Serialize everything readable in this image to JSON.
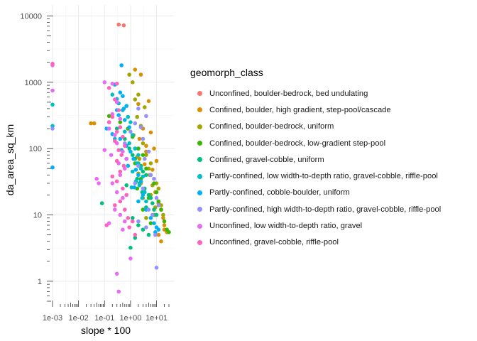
{
  "chart_data": {
    "type": "scatter",
    "xlabel": "slope * 100",
    "ylabel": "da_area_sq_km",
    "x_scale": "log10",
    "y_scale": "log10",
    "xlim": [
      0.001,
      30
    ],
    "ylim": [
      0.5,
      12000
    ],
    "x_ticks": [
      {
        "value": 0.001,
        "label": "1e-03"
      },
      {
        "value": 0.01,
        "label": "1e-02"
      },
      {
        "value": 0.1,
        "label": "1e-01"
      },
      {
        "value": 1,
        "label": "1e+00"
      },
      {
        "value": 10,
        "label": "1e+01"
      }
    ],
    "y_ticks": [
      {
        "value": 1,
        "label": "1"
      },
      {
        "value": 10,
        "label": "10"
      },
      {
        "value": 100,
        "label": "100"
      },
      {
        "value": 1000,
        "label": "1000"
      },
      {
        "value": 10000,
        "label": "10000"
      }
    ],
    "grid": true,
    "rug": true,
    "legend_position": "right",
    "legend_title": "geomorph_class",
    "series": [
      {
        "name": "Unconfined, boulder-bedrock, bed undulating",
        "color": "#F8766D",
        "points": [
          [
            0.35,
            7400
          ],
          [
            0.55,
            7200
          ]
        ]
      },
      {
        "name": "Confined, boulder, high gradient, step-pool/cascade",
        "color": "#D89000",
        "points": [
          [
            1.5,
            1550
          ],
          [
            2.5,
            1300
          ],
          [
            5,
            520
          ],
          [
            2,
            470
          ],
          [
            3,
            200
          ],
          [
            6,
            175
          ],
          [
            2.2,
            140
          ],
          [
            4,
            110
          ],
          [
            8,
            100
          ],
          [
            10,
            65
          ],
          [
            3.5,
            58
          ],
          [
            7,
            48
          ],
          [
            9,
            22
          ],
          [
            12,
            15
          ],
          [
            15,
            12
          ],
          [
            18,
            9
          ],
          [
            20,
            6
          ],
          [
            25,
            5.5
          ],
          [
            15,
            4
          ],
          [
            4,
            90
          ],
          [
            1.8,
            75
          ],
          [
            5.5,
            40
          ],
          [
            20,
            7
          ],
          [
            12,
            5
          ],
          [
            0.03,
            240
          ],
          [
            0.04,
            240
          ],
          [
            2.5,
            30
          ]
        ]
      },
      {
        "name": "Confined, boulder-bedrock, uniform",
        "color": "#A3A500",
        "points": [
          [
            0.9,
            1300
          ],
          [
            1.2,
            1000
          ],
          [
            2,
            650
          ],
          [
            1.5,
            550
          ],
          [
            3.5,
            420
          ],
          [
            1.8,
            300
          ],
          [
            2.5,
            220
          ],
          [
            1.3,
            160
          ],
          [
            3,
            120
          ],
          [
            4,
            80
          ],
          [
            6,
            60
          ],
          [
            5,
            50
          ],
          [
            2,
            42
          ],
          [
            8,
            35
          ],
          [
            10,
            30
          ],
          [
            12,
            25
          ],
          [
            6,
            20
          ],
          [
            3,
            18
          ],
          [
            15,
            14
          ],
          [
            18,
            10
          ],
          [
            4,
            9
          ],
          [
            2.2,
            70
          ],
          [
            7,
            28
          ],
          [
            9,
            13
          ]
        ]
      },
      {
        "name": "Confined, boulder-bedrock, low-gradient step-pool",
        "color": "#39B600",
        "points": [
          [
            0.15,
            310
          ],
          [
            0.4,
            250
          ],
          [
            0.8,
            200
          ],
          [
            1.2,
            150
          ],
          [
            2,
            100
          ],
          [
            3,
            80
          ],
          [
            1.5,
            60
          ],
          [
            4,
            50
          ],
          [
            6,
            40
          ],
          [
            2.5,
            35
          ],
          [
            8,
            30
          ],
          [
            10,
            22
          ],
          [
            5,
            18
          ],
          [
            12,
            16
          ],
          [
            15,
            12
          ],
          [
            20,
            8
          ],
          [
            25,
            6
          ],
          [
            30,
            5.5
          ],
          [
            8,
            10
          ],
          [
            6,
            7.5
          ],
          [
            3,
            12
          ],
          [
            1.8,
            25
          ]
        ]
      },
      {
        "name": "Confined, gravel-cobble, uniform",
        "color": "#00BF7D",
        "points": [
          [
            0.08,
            15
          ],
          [
            0.3,
            200
          ],
          [
            0.6,
            140
          ],
          [
            0.9,
            100
          ],
          [
            1.2,
            80
          ],
          [
            1.5,
            70
          ],
          [
            2,
            60
          ],
          [
            2.5,
            55
          ],
          [
            3,
            45
          ],
          [
            4,
            40
          ],
          [
            1.8,
            35
          ],
          [
            2.2,
            30
          ],
          [
            3.5,
            25
          ],
          [
            5,
            20
          ],
          [
            6,
            18
          ],
          [
            7,
            15
          ],
          [
            4,
            13
          ],
          [
            8,
            12
          ],
          [
            10,
            10
          ],
          [
            1.2,
            9
          ],
          [
            2,
            7
          ],
          [
            3,
            6
          ],
          [
            5,
            5
          ],
          [
            1.5,
            4.5
          ],
          [
            1,
            3.2
          ],
          [
            0.7,
            28
          ],
          [
            2.8,
            22
          ]
        ]
      },
      {
        "name": "Partly-confined, low width-to-depth ratio, gravel-cobble, riffle-pool",
        "color": "#00BFC4",
        "points": [
          [
            0.001,
            460
          ],
          [
            0.001,
            220
          ],
          [
            0.2,
            650
          ],
          [
            0.35,
            480
          ],
          [
            0.5,
            380
          ],
          [
            0.8,
            300
          ],
          [
            1,
            250
          ],
          [
            0.6,
            180
          ],
          [
            1.2,
            160
          ],
          [
            0.9,
            120
          ],
          [
            1.5,
            100
          ],
          [
            2,
            80
          ],
          [
            0.7,
            70
          ],
          [
            1.8,
            60
          ],
          [
            2.5,
            50
          ],
          [
            1.2,
            45
          ],
          [
            3,
            38
          ],
          [
            1.6,
            32
          ],
          [
            2.2,
            28
          ],
          [
            3.5,
            22
          ],
          [
            2.8,
            18
          ],
          [
            0.25,
            140
          ],
          [
            0.45,
            95
          ],
          [
            1.1,
            26
          ],
          [
            4,
            16
          ]
        ]
      },
      {
        "name": "Partly-confined, cobble-boulder, uniform",
        "color": "#00B0F6",
        "points": [
          [
            0.001,
            52
          ],
          [
            0.45,
            1800
          ],
          [
            0.25,
            920
          ],
          [
            0.4,
            700
          ],
          [
            0.3,
            560
          ],
          [
            0.5,
            620
          ],
          [
            0.7,
            440
          ],
          [
            0.35,
            320
          ],
          [
            0.6,
            270
          ],
          [
            0.9,
            210
          ],
          [
            0.15,
            250
          ],
          [
            0.2,
            165
          ],
          [
            0.4,
            140
          ],
          [
            0.7,
            110
          ],
          [
            1,
            90
          ],
          [
            1.3,
            70
          ],
          [
            0.8,
            55
          ],
          [
            1.6,
            48
          ],
          [
            2,
            40
          ],
          [
            2.5,
            32
          ],
          [
            1.4,
            26
          ],
          [
            3,
            20
          ],
          [
            2,
            16
          ],
          [
            4,
            12
          ],
          [
            6,
            9
          ],
          [
            8,
            7.5
          ],
          [
            10,
            6.5
          ],
          [
            12,
            6
          ],
          [
            9,
            5.5
          ],
          [
            0.55,
            400
          ],
          [
            0.3,
            380
          ],
          [
            0.12,
            200
          ]
        ]
      },
      {
        "name": "Partly-confined, high width-to-depth ratio, gravel-cobble, riffle-pool",
        "color": "#9590FF",
        "points": [
          [
            0.001,
            200
          ],
          [
            2,
            400
          ],
          [
            4,
            310
          ],
          [
            1.5,
            240
          ],
          [
            2.5,
            210
          ],
          [
            1,
            180
          ],
          [
            3,
            140
          ],
          [
            0.6,
            120
          ],
          [
            5,
            90
          ],
          [
            3.5,
            70
          ],
          [
            2,
            55
          ],
          [
            6,
            40
          ],
          [
            8,
            35
          ],
          [
            1.5,
            30
          ],
          [
            10,
            18
          ],
          [
            12,
            14
          ],
          [
            3,
            25
          ],
          [
            5,
            12
          ],
          [
            7,
            10
          ],
          [
            2,
            8
          ],
          [
            4,
            6.5
          ],
          [
            10,
            1.6
          ],
          [
            9,
            5
          ]
        ]
      },
      {
        "name": "Unconfined, low width-to-depth ratio, gravel",
        "color": "#E76BF3",
        "points": [
          [
            0.001,
            750
          ],
          [
            0.001,
            1800
          ],
          [
            0.1,
            1000
          ],
          [
            0.2,
            950
          ],
          [
            0.3,
            500
          ],
          [
            0.2,
            330
          ],
          [
            0.4,
            280
          ],
          [
            0.15,
            200
          ],
          [
            0.25,
            160
          ],
          [
            0.3,
            120
          ],
          [
            0.5,
            90
          ],
          [
            0.18,
            80
          ],
          [
            0.35,
            60
          ],
          [
            0.6,
            50
          ],
          [
            0.4,
            40
          ],
          [
            0.05,
            35
          ],
          [
            0.06,
            30
          ],
          [
            0.2,
            30
          ],
          [
            0.3,
            22
          ],
          [
            0.5,
            18
          ],
          [
            0.25,
            12
          ],
          [
            0.4,
            10
          ],
          [
            0.6,
            8
          ],
          [
            0.15,
            7.5
          ],
          [
            0.5,
            6
          ],
          [
            1,
            2.2
          ],
          [
            0.3,
            1.3
          ],
          [
            0.35,
            0.7
          ],
          [
            0.1,
            95
          ],
          [
            0.7,
            70
          ]
        ]
      },
      {
        "name": "Unconfined, gravel-cobble, riffle-pool",
        "color": "#FF62BC",
        "points": [
          [
            0.001,
            1900
          ],
          [
            0.3,
            950
          ],
          [
            0.15,
            820
          ],
          [
            0.25,
            550
          ],
          [
            0.35,
            380
          ],
          [
            0.2,
            300
          ],
          [
            0.15,
            250
          ],
          [
            0.4,
            210
          ],
          [
            0.3,
            180
          ],
          [
            0.5,
            150
          ],
          [
            0.25,
            130
          ],
          [
            0.6,
            110
          ],
          [
            0.35,
            95
          ],
          [
            0.45,
            80
          ],
          [
            0.3,
            65
          ],
          [
            0.55,
            55
          ],
          [
            0.4,
            45
          ],
          [
            0.2,
            38
          ],
          [
            0.3,
            32
          ],
          [
            0.5,
            25
          ],
          [
            0.7,
            20
          ],
          [
            0.4,
            16
          ],
          [
            0.25,
            14
          ],
          [
            0.6,
            12
          ],
          [
            0.8,
            9
          ],
          [
            1.2,
            8
          ],
          [
            0.9,
            6.5
          ],
          [
            0.12,
            7
          ],
          [
            1.5,
            5
          ]
        ]
      }
    ]
  }
}
